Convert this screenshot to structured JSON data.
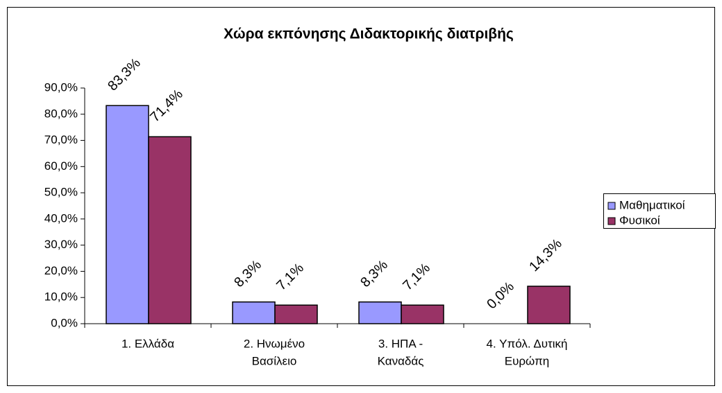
{
  "chart_data": {
    "type": "bar",
    "title": "Χώρα εκπόνησης Διδακτορικής διατριβής",
    "categories": [
      [
        "1. Ελλάδα"
      ],
      [
        "2. Ηνωμένο",
        "Βασίλειο"
      ],
      [
        "3. ΗΠΑ -",
        "Καναδάς"
      ],
      [
        "4. Υπόλ. Δυτική",
        "Ευρώπη"
      ]
    ],
    "series": [
      {
        "name": "Μαθηματικοί",
        "color": "#9999ff",
        "values": [
          83.3,
          8.3,
          8.3,
          0.0
        ],
        "value_labels": [
          "83,3%",
          "8,3%",
          "8,3%",
          "0,0%"
        ]
      },
      {
        "name": "Φυσικοί",
        "color": "#993366",
        "values": [
          71.4,
          7.1,
          7.1,
          14.3
        ],
        "value_labels": [
          "71,4%",
          "7,1%",
          "7,1%",
          "14,3%"
        ]
      }
    ],
    "ylim": [
      0,
      90
    ],
    "yticks": [
      {
        "value": 0,
        "label": "0,0%"
      },
      {
        "value": 10,
        "label": "10,0%"
      },
      {
        "value": 20,
        "label": "20,0%"
      },
      {
        "value": 30,
        "label": "30,0%"
      },
      {
        "value": 40,
        "label": "40,0%"
      },
      {
        "value": 50,
        "label": "50,0%"
      },
      {
        "value": 60,
        "label": "60,0%"
      },
      {
        "value": 70,
        "label": "70,0%"
      },
      {
        "value": 80,
        "label": "80,0%"
      },
      {
        "value": 90,
        "label": "90,0%"
      }
    ],
    "legend": "right"
  }
}
